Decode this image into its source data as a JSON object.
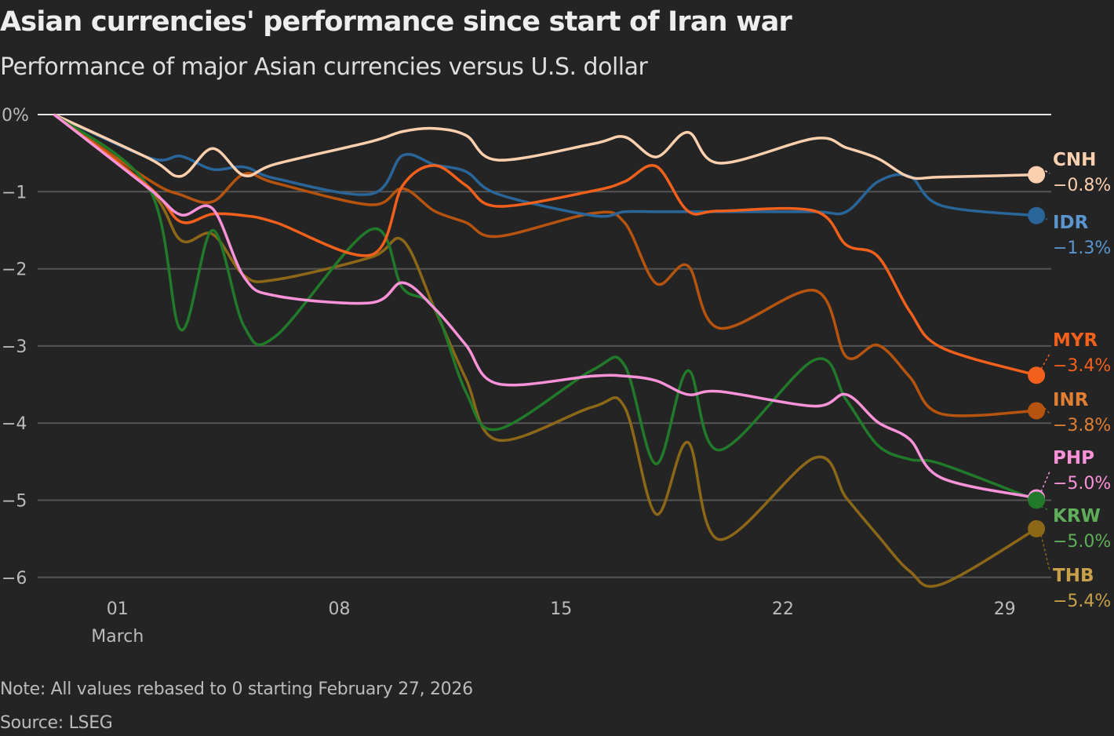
{
  "title": "Asian currencies' performance since start of Iran war",
  "subtitle": "Performance of major Asian currencies versus U.S. dollar",
  "note": "Note: All values rebased to 0 starting February 27, 2026",
  "source": "Source: LSEG",
  "chart_data": {
    "type": "line",
    "title": "Asian currencies' performance since start of Iran war",
    "subtitle": "Performance of major Asian currencies versus U.S. dollar",
    "xlabel": "",
    "ylabel": "",
    "ylim": [
      -6,
      0
    ],
    "y_ticks": [
      {
        "value": 0,
        "label": "0%"
      },
      {
        "value": -1,
        "label": "−1"
      },
      {
        "value": -2,
        "label": "−2"
      },
      {
        "value": -3,
        "label": "−3"
      },
      {
        "value": -4,
        "label": "−4"
      },
      {
        "value": -5,
        "label": "−5"
      },
      {
        "value": -6,
        "label": "−6"
      }
    ],
    "x_ticks": [
      {
        "date": "2026-03-01",
        "label": "01",
        "sublabel": "March"
      },
      {
        "date": "2026-03-08",
        "label": "08"
      },
      {
        "date": "2026-03-15",
        "label": "15"
      },
      {
        "date": "2026-03-22",
        "label": "22"
      },
      {
        "date": "2026-03-29",
        "label": "29"
      }
    ],
    "grid": true,
    "legend": "direct labels at line ends (right)",
    "x": [
      "2026-02-27",
      "2026-03-02",
      "2026-03-03",
      "2026-03-04",
      "2026-03-05",
      "2026-03-06",
      "2026-03-09",
      "2026-03-10",
      "2026-03-11",
      "2026-03-12",
      "2026-03-13",
      "2026-03-16",
      "2026-03-17",
      "2026-03-18",
      "2026-03-19",
      "2026-03-20",
      "2026-03-23",
      "2026-03-24",
      "2026-03-25",
      "2026-03-26",
      "2026-03-27",
      "2026-03-30"
    ],
    "series": [
      {
        "name": "CNH",
        "end_label": "−0.8%",
        "color": "#fccfae",
        "label_color": "#fccfae",
        "values": [
          0,
          -0.57,
          -0.8,
          -0.44,
          -0.79,
          -0.64,
          -0.35,
          -0.22,
          -0.18,
          -0.27,
          -0.59,
          -0.38,
          -0.29,
          -0.55,
          -0.23,
          -0.63,
          -0.31,
          -0.43,
          -0.57,
          -0.81,
          -0.81,
          -0.78
        ]
      },
      {
        "name": "IDR",
        "end_label": "−1.3%",
        "color": "#2a6599",
        "label_color": "#5b95d0",
        "values": [
          0,
          -0.56,
          -0.54,
          -0.71,
          -0.68,
          -0.83,
          -1.03,
          -0.53,
          -0.65,
          -0.74,
          -1.03,
          -1.31,
          -1.26,
          -1.26,
          -1.26,
          -1.26,
          -1.26,
          -1.26,
          -0.87,
          -0.8,
          -1.18,
          -1.31
        ]
      },
      {
        "name": "MYR",
        "end_label": "−3.4%",
        "color": "#f2601b",
        "label_color": "#f2601b",
        "values": [
          0,
          -0.94,
          -1.39,
          -1.29,
          -1.31,
          -1.4,
          -1.82,
          -0.92,
          -0.66,
          -0.92,
          -1.19,
          -0.99,
          -0.87,
          -0.67,
          -1.25,
          -1.25,
          -1.25,
          -1.69,
          -1.84,
          -2.55,
          -3.02,
          -3.38
        ]
      },
      {
        "name": "INR",
        "end_label": "−3.8%",
        "color": "#b6540f",
        "label_color": "#e07e34",
        "values": [
          0,
          -0.85,
          -1.04,
          -1.13,
          -0.77,
          -0.89,
          -1.17,
          -0.96,
          -1.25,
          -1.4,
          -1.58,
          -1.28,
          -1.4,
          -2.19,
          -1.96,
          -2.77,
          -2.28,
          -3.14,
          -2.99,
          -3.4,
          -3.88,
          -3.84
        ]
      },
      {
        "name": "PHP",
        "end_label": "−5.0%",
        "color": "#f992d8",
        "label_color": "#f992d8",
        "values": [
          0,
          -0.96,
          -1.3,
          -1.22,
          -2.11,
          -2.35,
          -2.44,
          -2.18,
          -2.51,
          -2.99,
          -3.49,
          -3.39,
          -3.39,
          -3.45,
          -3.63,
          -3.59,
          -3.78,
          -3.63,
          -3.99,
          -4.21,
          -4.71,
          -4.97
        ]
      },
      {
        "name": "KRW",
        "end_label": "−5.0%",
        "color": "#207a2a",
        "label_color": "#5fae5a",
        "values": [
          0,
          -0.96,
          -2.79,
          -1.5,
          -2.75,
          -2.87,
          -1.49,
          -2.25,
          -2.51,
          -3.6,
          -4.08,
          -3.31,
          -3.25,
          -4.53,
          -3.32,
          -4.35,
          -3.18,
          -3.7,
          -4.29,
          -4.47,
          -4.53,
          -5.0
        ]
      },
      {
        "name": "THB",
        "end_label": "−5.4%",
        "color": "#8c6718",
        "label_color": "#c9a04a",
        "values": [
          0,
          -0.97,
          -1.63,
          -1.55,
          -2.09,
          -2.14,
          -1.85,
          -1.63,
          -2.51,
          -3.43,
          -4.22,
          -3.79,
          -3.79,
          -5.18,
          -4.25,
          -5.51,
          -4.45,
          -4.97,
          -5.46,
          -5.92,
          -6.09,
          -5.37
        ]
      }
    ]
  }
}
